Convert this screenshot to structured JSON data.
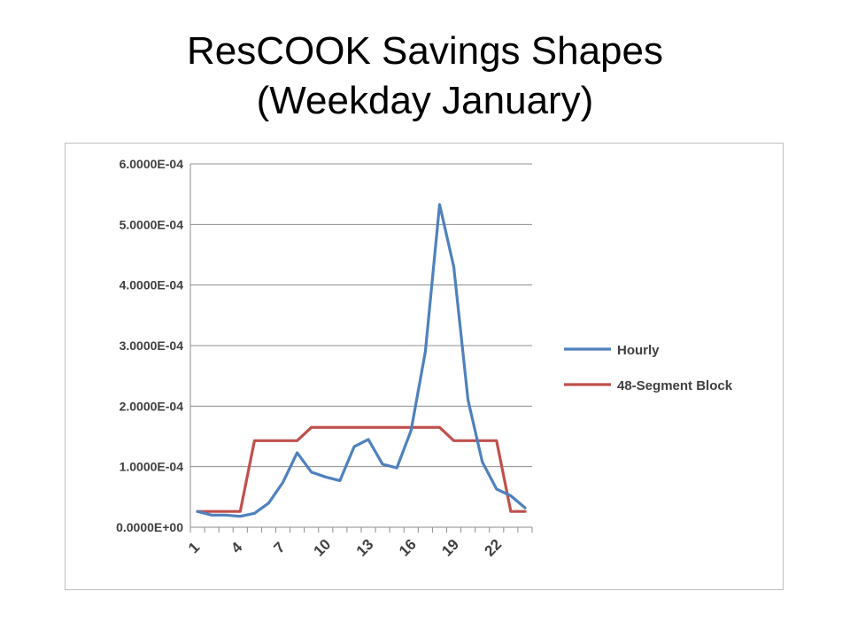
{
  "slide": {
    "title_line1": "ResCOOK Savings Shapes",
    "title_line2": "(Weekday January)"
  },
  "chart_data": {
    "type": "line",
    "x": [
      1,
      2,
      3,
      4,
      5,
      6,
      7,
      8,
      9,
      10,
      11,
      12,
      13,
      14,
      15,
      16,
      17,
      18,
      19,
      20,
      21,
      22,
      23,
      24
    ],
    "xticks": [
      "1",
      "4",
      "7",
      "10",
      "13",
      "16",
      "19",
      "22"
    ],
    "yticks": [
      "0.0000E+00",
      "1.0000E-04",
      "2.0000E-04",
      "3.0000E-04",
      "4.0000E-04",
      "5.0000E-04",
      "6.0000E-04"
    ],
    "ylim": [
      0,
      0.0006
    ],
    "grid": true,
    "legend_position": "right",
    "series": [
      {
        "name": "Hourly",
        "color": "#4f81bd",
        "values": [
          2.6e-05,
          2e-05,
          2e-05,
          1.8e-05,
          2.3e-05,
          4e-05,
          7.4e-05,
          0.000123,
          9.1e-05,
          8.3e-05,
          7.7e-05,
          0.000133,
          0.000145,
          0.000104,
          9.8e-05,
          0.00016,
          0.00029,
          0.000533,
          0.00043,
          0.00021,
          0.000108,
          6.3e-05,
          5.2e-05,
          3.2e-05
        ]
      },
      {
        "name": "48-Segment Block",
        "color": "#c0504d",
        "values": [
          2.6e-05,
          2.6e-05,
          2.6e-05,
          2.6e-05,
          0.000143,
          0.000143,
          0.000143,
          0.000143,
          0.000165,
          0.000165,
          0.000165,
          0.000165,
          0.000165,
          0.000165,
          0.000165,
          0.000165,
          0.000165,
          0.000165,
          0.000143,
          0.000143,
          0.000143,
          0.000143,
          2.6e-05,
          2.6e-05
        ]
      }
    ]
  }
}
